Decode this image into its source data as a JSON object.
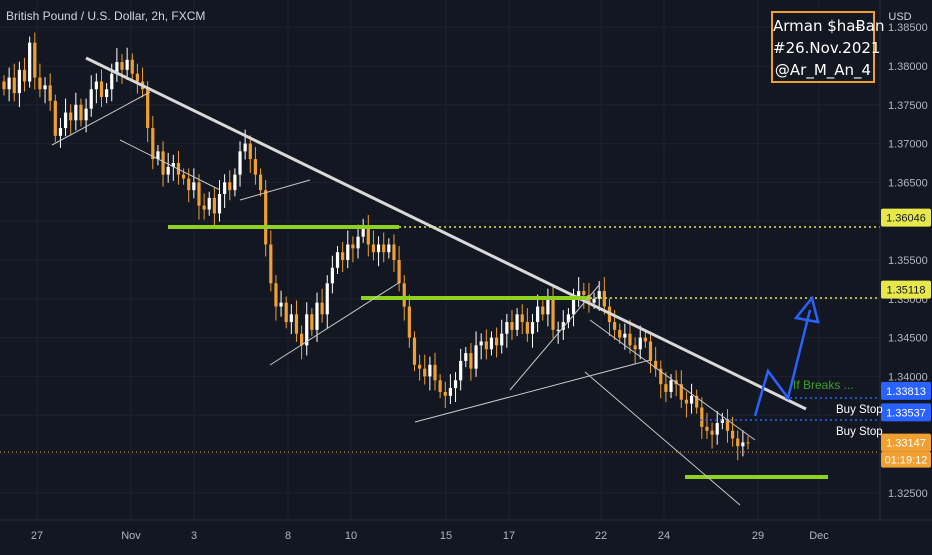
{
  "chart_data": {
    "type": "candlestick",
    "title": "British Pound / U.S. Dollar, 2h, FXCM",
    "currency": "USD",
    "ylim": [
      1.3215,
      1.3885
    ],
    "price_ticks": [
      "1.38500",
      "1.38000",
      "1.37500",
      "1.37000",
      "1.36500",
      "1.36000",
      "1.35500",
      "1.35000",
      "1.34500",
      "1.34000",
      "1.33500",
      "1.33000",
      "1.32500"
    ],
    "x_ticks": [
      "27",
      "Nov",
      "3",
      "8",
      "10",
      "15",
      "17",
      "22",
      "24",
      "29",
      "Dec"
    ],
    "price_tags": [
      {
        "label": "1.36046",
        "style": "yellow"
      },
      {
        "label": "1.35118",
        "style": "yellow"
      },
      {
        "label": "1.33813",
        "style": "blue"
      },
      {
        "label": "1.33537",
        "style": "blue"
      },
      {
        "label": "1.33147",
        "style": "orange"
      }
    ],
    "countdown": "01:19:12",
    "annotations": {
      "if_breaks": "If Breaks ...",
      "buy_stop_1": "Buy Stop",
      "buy_stop_2": "Buy Stop"
    },
    "series": [
      {
        "values": [
          1.377,
          1.3785,
          1.3765,
          1.3795,
          1.378,
          1.383,
          1.3785,
          1.377,
          1.3775,
          1.3755,
          1.371,
          1.372,
          1.374,
          1.373,
          1.375,
          1.373,
          1.3745,
          1.377,
          1.378,
          1.376,
          1.377,
          1.379,
          1.3805,
          1.3795,
          1.3808,
          1.379,
          1.378,
          1.377,
          1.372,
          1.368,
          1.369,
          1.366,
          1.367,
          1.3675,
          1.366,
          1.3655,
          1.364,
          1.365,
          1.362,
          1.3615,
          1.363,
          1.361,
          1.3635,
          1.365,
          1.364,
          1.366,
          1.369,
          1.37,
          1.368,
          1.366,
          1.364,
          1.357,
          1.352,
          1.349,
          1.3495,
          1.347,
          1.348,
          1.3455,
          1.344,
          1.348,
          1.346,
          1.3495,
          1.348,
          1.352,
          1.354,
          1.356,
          1.355,
          1.357,
          1.3565,
          1.358,
          1.3595,
          1.357,
          1.356,
          1.357,
          1.356,
          1.357,
          1.355,
          1.352,
          1.349,
          1.345,
          1.3415,
          1.341,
          1.34,
          1.3415,
          1.3395,
          1.338,
          1.3375,
          1.3385,
          1.3395,
          1.342,
          1.343,
          1.341,
          1.344,
          1.3445,
          1.3435,
          1.345,
          1.344,
          1.3455,
          1.347,
          1.346,
          1.348,
          1.347,
          1.3455,
          1.347,
          1.349,
          1.348,
          1.35,
          1.346,
          1.346,
          1.347,
          1.348,
          1.35,
          1.351,
          1.3505,
          1.3495,
          1.35,
          1.351,
          1.349,
          1.347,
          1.346,
          1.345,
          1.3455,
          1.344,
          1.3435,
          1.345,
          1.3445,
          1.342,
          1.341,
          1.339,
          1.338,
          1.3395,
          1.339,
          1.337,
          1.3365,
          1.3375,
          1.336,
          1.3335,
          1.333,
          1.3325,
          1.334,
          1.3345,
          1.333,
          1.332,
          1.331,
          1.3315,
          1.3314
        ]
      }
    ]
  }
}
